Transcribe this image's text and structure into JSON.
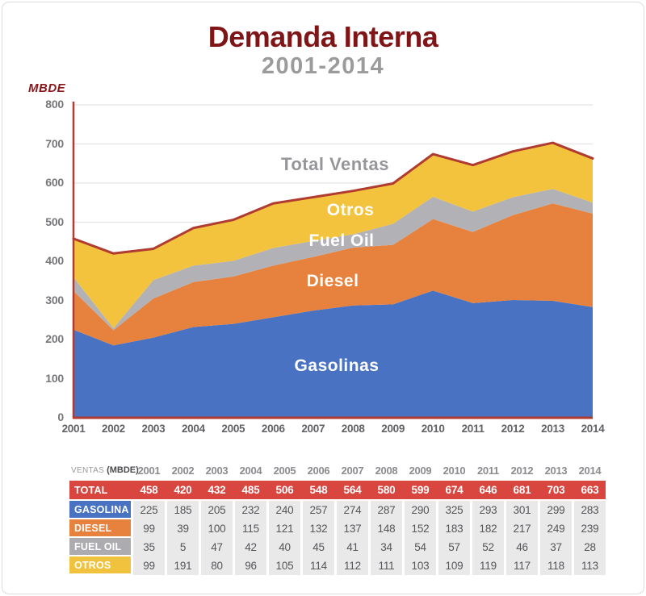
{
  "header": {
    "title": "Demanda Interna",
    "subtitle": "2001-2014"
  },
  "chart": {
    "unit_label": "MBDE",
    "area_labels": {
      "total": "Total Ventas",
      "otros": "Otros",
      "fuel_oil": "Fuel Oil",
      "diesel": "Diesel",
      "gasolinas": "Gasolinas"
    }
  },
  "chart_data": {
    "type": "area",
    "stacked": true,
    "title": "Demanda Interna",
    "subtitle": "2001-2014",
    "ylabel": "MBDE",
    "xlabel": "",
    "categories": [
      "2001",
      "2002",
      "2003",
      "2004",
      "2005",
      "2006",
      "2007",
      "2008",
      "2009",
      "2010",
      "2011",
      "2012",
      "2013",
      "2014"
    ],
    "series": [
      {
        "name": "Gasolinas",
        "color": "#4972C3",
        "values": [
          225,
          185,
          205,
          232,
          240,
          257,
          274,
          287,
          290,
          325,
          293,
          301,
          299,
          283
        ]
      },
      {
        "name": "Diesel",
        "color": "#E6823D",
        "values": [
          99,
          39,
          100,
          115,
          121,
          132,
          137,
          148,
          152,
          183,
          182,
          217,
          249,
          239
        ]
      },
      {
        "name": "Fuel Oil",
        "color": "#B2B2B6",
        "values": [
          35,
          5,
          47,
          42,
          40,
          45,
          41,
          34,
          54,
          57,
          52,
          46,
          37,
          28
        ]
      },
      {
        "name": "Otros",
        "color": "#F4C33E",
        "values": [
          99,
          191,
          80,
          96,
          105,
          114,
          112,
          111,
          103,
          109,
          119,
          117,
          118,
          113
        ]
      }
    ],
    "total_line": {
      "name": "Total Ventas",
      "color": "#B03B30",
      "values": [
        458,
        420,
        432,
        485,
        506,
        548,
        564,
        580,
        599,
        674,
        646,
        681,
        703,
        663
      ]
    },
    "ylim": [
      0,
      800
    ],
    "y_ticks": [
      0,
      100,
      200,
      300,
      400,
      500,
      600,
      700,
      800
    ],
    "grid": "horizontal",
    "grid_color": "#e4e4e4",
    "axis_color": "#B03B30",
    "legend_position": "labels-inside-areas"
  },
  "table": {
    "header_label": "VENTAS",
    "header_unit": "(MBDE)",
    "columns": [
      "2001",
      "2002",
      "2003",
      "2004",
      "2005",
      "2006",
      "2007",
      "2008",
      "2009",
      "2010",
      "2011",
      "2012",
      "2013",
      "2014"
    ],
    "data_cell_bg": "#e9e9e9",
    "data_text_color": "#55555a",
    "rows": [
      {
        "label": "TOTAL",
        "label_color": "#D8463F",
        "row_bg": "#D8463F",
        "text_color": "#ffffff",
        "bold": true,
        "values": [
          458,
          420,
          432,
          485,
          506,
          548,
          564,
          580,
          599,
          674,
          646,
          681,
          703,
          663
        ]
      },
      {
        "label": "GASOLINA",
        "label_color": "#4972C3",
        "values": [
          225,
          185,
          205,
          232,
          240,
          257,
          274,
          287,
          290,
          325,
          293,
          301,
          299,
          283
        ]
      },
      {
        "label": "DIESEL",
        "label_color": "#E6823D",
        "values": [
          99,
          39,
          100,
          115,
          121,
          132,
          137,
          148,
          152,
          183,
          182,
          217,
          249,
          239
        ]
      },
      {
        "label": "FUEL OIL",
        "label_color": "#ACACB0",
        "values": [
          35,
          5,
          47,
          42,
          40,
          45,
          41,
          34,
          54,
          57,
          52,
          46,
          37,
          28
        ]
      },
      {
        "label": "OTROS",
        "label_color": "#F0C23D",
        "values": [
          99,
          191,
          80,
          96,
          105,
          114,
          112,
          111,
          103,
          109,
          119,
          117,
          118,
          113
        ]
      }
    ]
  }
}
